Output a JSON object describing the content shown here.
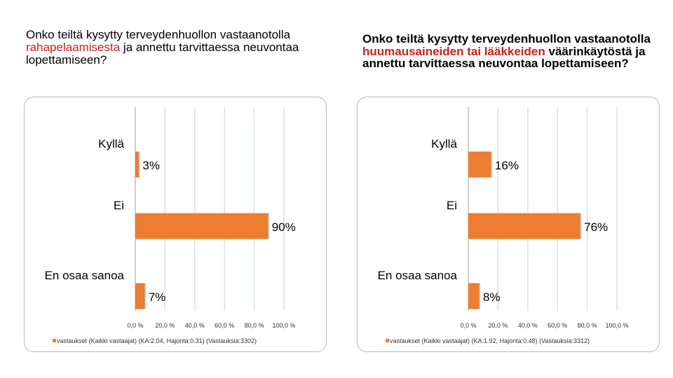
{
  "titles": [
    {
      "pre": "Onko teiltä kysytty terveydenhuollon vastaanotolla ",
      "highlight": "rahapelaamisesta",
      "post": " ja annettu tarvittaessa neuvontaa lopettamiseen?"
    },
    {
      "pre": "Onko teiltä kysytty terveydenhuollon vastaanotolla ",
      "highlight": "huumausaineiden tai lääkkeiden",
      "post": "  väärinkäytöstä ja annettu tarvittaessa   neuvontaa lopettamiseen?"
    }
  ],
  "colors": {
    "bar": "#ed7d31",
    "highlight": "#cc1f1f",
    "grid": "#d9e2ec"
  },
  "chart_data": [
    {
      "type": "bar",
      "orientation": "horizontal",
      "categories": [
        "Kyllä",
        "Ei",
        "En osaa sanoa"
      ],
      "values": [
        3,
        90,
        7
      ],
      "data_labels": [
        "3%",
        "90%",
        "7%"
      ],
      "xlim": [
        0,
        100
      ],
      "x_ticks": [
        "0,0 %",
        "20,0 %",
        "40,0 %",
        "60,0 %",
        "80,0 %",
        "100,0 %"
      ],
      "grid": true,
      "legend_placement": "bottom-left",
      "series": [
        {
          "name": "vastaukset (Kaikki vastaajat) (KA:2.04, Hajonta:0.31) (Vastauksia:3302)",
          "values": [
            3,
            90,
            7
          ]
        }
      ]
    },
    {
      "type": "bar",
      "orientation": "horizontal",
      "categories": [
        "Kyllä",
        "Ei",
        "En osaa sanoa"
      ],
      "values": [
        16,
        76,
        8
      ],
      "data_labels": [
        "16%",
        "76%",
        "8%"
      ],
      "xlim": [
        0,
        100
      ],
      "x_ticks": [
        "0,0 %",
        "20,0 %",
        "40,0 %",
        "60,0 %",
        "80,0 %",
        "100,0 %"
      ],
      "grid": true,
      "legend_placement": "bottom-left",
      "series": [
        {
          "name": "vastaukset (Kaikki vastaajat) (KA:1.92, Hajonta:0.48) (Vastauksia:3312)",
          "values": [
            16,
            76,
            8
          ]
        }
      ]
    }
  ]
}
